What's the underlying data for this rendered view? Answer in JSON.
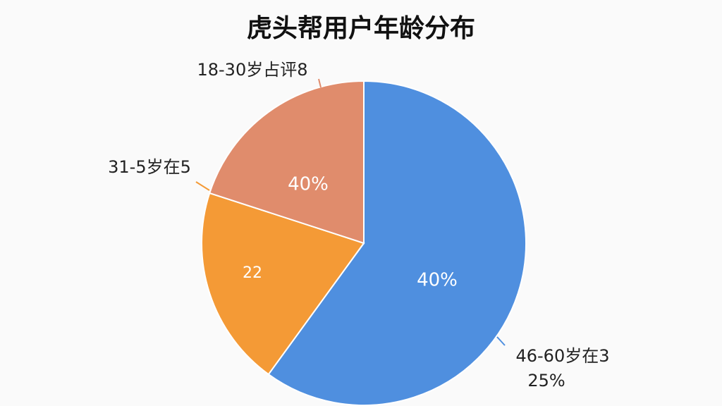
{
  "chart_data": {
    "type": "pie",
    "title": "虎头帮用户年龄分布",
    "categories": [
      "46-60岁在3",
      "31-5岁在5",
      "18-30岁占评8"
    ],
    "values": [
      60,
      20,
      20
    ],
    "colors": [
      "#4f8fdf",
      "#f49a36",
      "#e08c6c"
    ],
    "annotations": [
      "40%",
      "22",
      "40%",
      "25%"
    ]
  }
}
